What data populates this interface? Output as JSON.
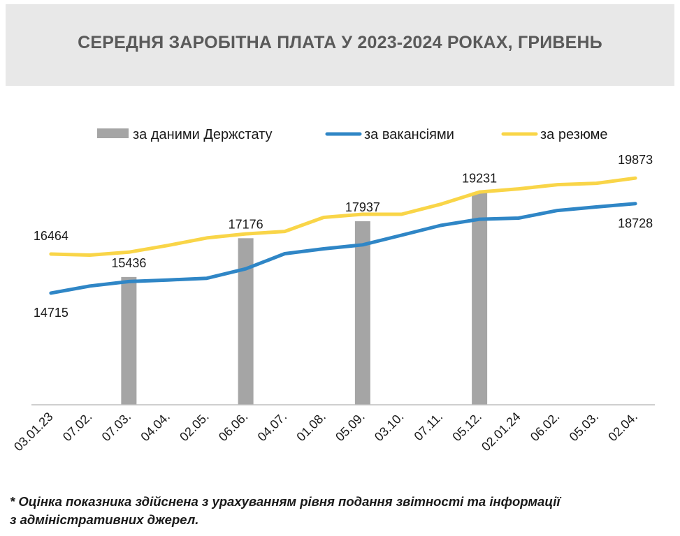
{
  "chart_data": {
    "type": "bar+line",
    "title": "СЕРЕДНЯ ЗАРОБІТНА ПЛАТА У 2023-2024 РОКАХ, ГРИВЕНЬ",
    "categories": [
      "03.01.23",
      "07.02.",
      "07.03.",
      "04.04.",
      "02.05.",
      "06.06.",
      "04.07.",
      "01.08.",
      "05.09.",
      "03.10.",
      "07.11.",
      "05.12.",
      "02.01.24",
      "06.02.",
      "05.03.",
      "02.04."
    ],
    "ylim": [
      9700,
      20600
    ],
    "grid": false,
    "legend_position": "top",
    "series": [
      {
        "name": "за даними Держстату",
        "kind": "bar",
        "color": "#a5a5a5",
        "values": [
          null,
          null,
          15436,
          null,
          null,
          17176,
          null,
          null,
          17937,
          null,
          null,
          19231,
          null,
          null,
          null,
          null
        ],
        "labels": [
          null,
          null,
          "15436",
          null,
          null,
          "17176",
          null,
          null,
          "17937",
          null,
          null,
          "19231",
          null,
          null,
          null,
          null
        ]
      },
      {
        "name": "за вакансіями",
        "kind": "line",
        "color": "#2f86c6",
        "values": [
          14715,
          15030,
          15230,
          15300,
          15380,
          15800,
          16480,
          16700,
          16880,
          17310,
          17750,
          18030,
          18080,
          18420,
          18580,
          18728
        ],
        "labels": [
          "14715",
          null,
          null,
          null,
          null,
          null,
          null,
          null,
          null,
          null,
          null,
          null,
          null,
          null,
          null,
          "18728"
        ]
      },
      {
        "name": "за резюме",
        "kind": "line",
        "color": "#f9d548",
        "values": [
          16464,
          16420,
          16550,
          16850,
          17190,
          17370,
          17480,
          18110,
          18250,
          18250,
          18700,
          19250,
          19390,
          19580,
          19640,
          19873
        ],
        "labels": [
          "16464",
          null,
          null,
          null,
          null,
          null,
          null,
          null,
          null,
          null,
          null,
          null,
          null,
          null,
          null,
          "19873"
        ]
      }
    ]
  },
  "footnote": {
    "line1": "* Оцінка показника здійснена з урахуванням рівня подання звітності та інформації",
    "line2": "з адміністративних джерел."
  }
}
